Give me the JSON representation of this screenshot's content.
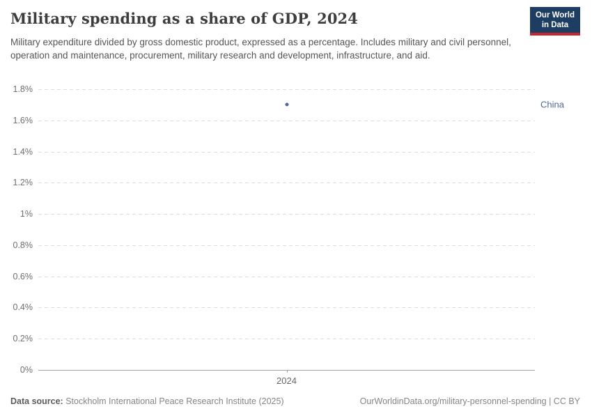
{
  "header": {
    "title": "Military spending as a share of GDP, 2024",
    "subtitle": "Military expenditure divided by gross domestic product, expressed as a percentage. Includes military and civil personnel, operation and maintenance, procurement, military research and development, infrastructure, and aid.",
    "logo_line1": "Our World",
    "logo_line2": "in Data"
  },
  "chart_data": {
    "type": "scatter",
    "title": "Military spending as a share of GDP, 2024",
    "x": [
      2024
    ],
    "x_tick_labels": [
      "2024"
    ],
    "series": [
      {
        "name": "China",
        "x": [
          2024
        ],
        "values": [
          1.7
        ],
        "color": "#4c6a9c"
      }
    ],
    "ylim": [
      0,
      1.8
    ],
    "y_ticks": [
      {
        "value": 0,
        "label": "0%"
      },
      {
        "value": 0.2,
        "label": "0.2%"
      },
      {
        "value": 0.4,
        "label": "0.4%"
      },
      {
        "value": 0.6,
        "label": "0.6%"
      },
      {
        "value": 0.8,
        "label": "0.8%"
      },
      {
        "value": 1,
        "label": "1%"
      },
      {
        "value": 1.2,
        "label": "1.2%"
      },
      {
        "value": 1.4,
        "label": "1.4%"
      },
      {
        "value": 1.6,
        "label": "1.6%"
      },
      {
        "value": 1.8,
        "label": "1.8%"
      }
    ],
    "grid": "horizontal-dashed",
    "legend_position": "entity-label-right"
  },
  "footer": {
    "data_source_label": "Data source:",
    "data_source_value": "Stockholm International Peace Research Institute (2025)",
    "attribution": "OurWorldinData.org/military-personnel-spending | CC BY"
  },
  "colors": {
    "accent_blue": "#4c6a9c",
    "logo_navy": "#1d3d63",
    "logo_red": "#c4262e",
    "gridline": "#dcdcdc",
    "axis_line": "#a3a3a3"
  }
}
